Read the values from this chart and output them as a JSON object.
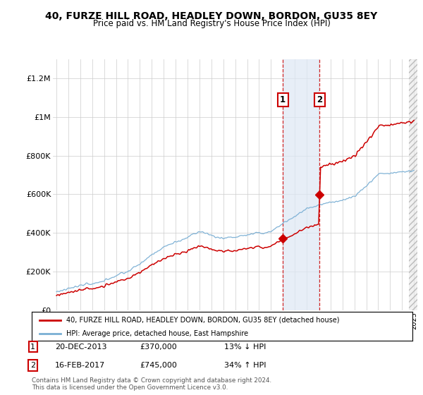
{
  "title": "40, FURZE HILL ROAD, HEADLEY DOWN, BORDON, GU35 8EY",
  "subtitle": "Price paid vs. HM Land Registry's House Price Index (HPI)",
  "ylim": [
    0,
    1300000
  ],
  "yticks": [
    0,
    200000,
    400000,
    600000,
    800000,
    1000000,
    1200000
  ],
  "ytick_labels": [
    "£0",
    "£200K",
    "£400K",
    "£600K",
    "£800K",
    "£1M",
    "£1.2M"
  ],
  "legend_line1": "40, FURZE HILL ROAD, HEADLEY DOWN, BORDON, GU35 8EY (detached house)",
  "legend_line2": "HPI: Average price, detached house, East Hampshire",
  "transaction1_date": "20-DEC-2013",
  "transaction1_price": "£370,000",
  "transaction1_pct": "13% ↓ HPI",
  "transaction2_date": "16-FEB-2017",
  "transaction2_price": "£745,000",
  "transaction2_pct": "34% ↑ HPI",
  "footer": "Contains HM Land Registry data © Crown copyright and database right 2024.\nThis data is licensed under the Open Government Licence v3.0.",
  "line_color_red": "#cc0000",
  "line_color_blue": "#7aafd4",
  "sale1_year": 2013.97,
  "sale1_price": 370000,
  "sale2_year": 2017.12,
  "sale2_price": 745000
}
